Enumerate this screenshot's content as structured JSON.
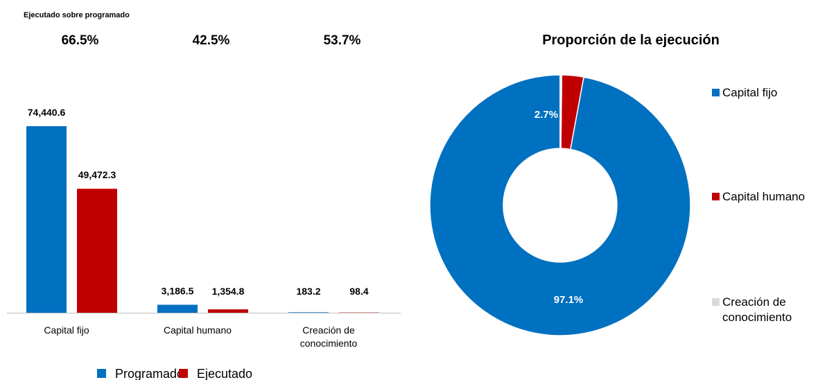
{
  "colors": {
    "programado": "#0070C0",
    "ejecutado": "#C00000",
    "creacion": "#D9D9D9",
    "axis": "#BFBFBF"
  },
  "chart_data": [
    {
      "type": "bar",
      "subtitle": "Ejecutado sobre programado",
      "categories": [
        "Capital fijo",
        "Capital humano",
        "Creación de conocimiento"
      ],
      "category_lines": [
        [
          "Capital fijo"
        ],
        [
          "Capital humano"
        ],
        [
          "Creación de",
          "conocimiento"
        ]
      ],
      "ratios": [
        "66.5%",
        "42.5%",
        "53.7%"
      ],
      "series": [
        {
          "name": "Programado",
          "values": [
            74440.6,
            3186.5,
            183.2
          ],
          "labels": [
            "74,440.6",
            "3,186.5",
            "183.2"
          ]
        },
        {
          "name": "Ejecutado",
          "values": [
            49472.3,
            1354.8,
            98.4
          ],
          "labels": [
            "49,472.3",
            "1,354.8",
            "98.4"
          ]
        }
      ],
      "ylim": [
        0,
        74440.6
      ],
      "legend": "bottom",
      "grid": false
    },
    {
      "type": "pie",
      "variant": "donut",
      "title": "Proporción de la ejecución",
      "slices": [
        {
          "name": "Capital fijo",
          "value": 97.1,
          "label": "97.1%"
        },
        {
          "name": "Capital humano",
          "value": 2.7,
          "label": "2.7%"
        },
        {
          "name": "Creación de conocimiento",
          "value": 0.2,
          "label": ""
        }
      ],
      "legend": "right",
      "legend_lines": [
        [
          "Capital fijo"
        ],
        [
          "Capital humano"
        ],
        [
          "Creación de",
          "conocimiento"
        ]
      ]
    }
  ]
}
